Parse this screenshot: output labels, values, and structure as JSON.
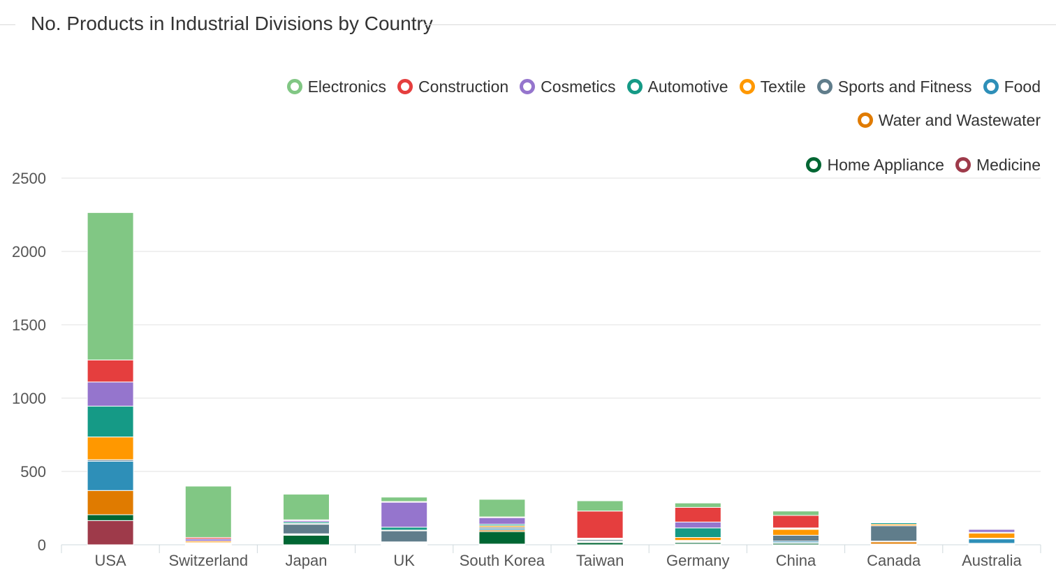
{
  "chart_data": {
    "type": "bar",
    "stacked": true,
    "title": "No. Products in Industrial Divisions by Country",
    "xlabel": "",
    "ylabel": "",
    "ylim": [
      0,
      2500
    ],
    "yticks": [
      0,
      500,
      1000,
      1500,
      2000,
      2500
    ],
    "grid": true,
    "legend_position": "top-right",
    "categories": [
      "USA",
      "Switzerland",
      "Japan",
      "UK",
      "South Korea",
      "Taiwan",
      "Germany",
      "China",
      "Canada",
      "Australia"
    ],
    "series": [
      {
        "name": "Medicine",
        "color": "#9e3a4a",
        "values": [
          165,
          0,
          0,
          5,
          5,
          0,
          5,
          0,
          0,
          0
        ]
      },
      {
        "name": "Home Appliance",
        "color": "#006633",
        "values": [
          40,
          5,
          65,
          5,
          85,
          15,
          10,
          10,
          5,
          5
        ]
      },
      {
        "name": "Water and Wastewater",
        "color": "#e07b00",
        "values": [
          165,
          5,
          5,
          5,
          10,
          5,
          5,
          5,
          15,
          5
        ]
      },
      {
        "name": "Food",
        "color": "#2e8fb8",
        "values": [
          200,
          0,
          5,
          5,
          10,
          5,
          5,
          10,
          5,
          30
        ]
      },
      {
        "name": "Sports and Fitness",
        "color": "#607d8b",
        "values": [
          10,
          5,
          65,
          75,
          10,
          10,
          5,
          40,
          105,
          5
        ]
      },
      {
        "name": "Textile",
        "color": "#ff9800",
        "values": [
          155,
          10,
          5,
          5,
          10,
          5,
          20,
          40,
          10,
          35
        ]
      },
      {
        "name": "Automotive",
        "color": "#159a86",
        "values": [
          210,
          0,
          10,
          20,
          10,
          0,
          65,
          5,
          10,
          5
        ]
      },
      {
        "name": "Cosmetics",
        "color": "#9575cd",
        "values": [
          165,
          15,
          10,
          170,
          45,
          5,
          40,
          5,
          5,
          20
        ]
      },
      {
        "name": "Construction",
        "color": "#e53e3e",
        "values": [
          150,
          10,
          5,
          5,
          5,
          185,
          100,
          85,
          5,
          5
        ]
      },
      {
        "name": "Electronics",
        "color": "#81c784",
        "values": [
          1005,
          350,
          175,
          30,
          120,
          70,
          30,
          30,
          5,
          5
        ]
      }
    ]
  }
}
